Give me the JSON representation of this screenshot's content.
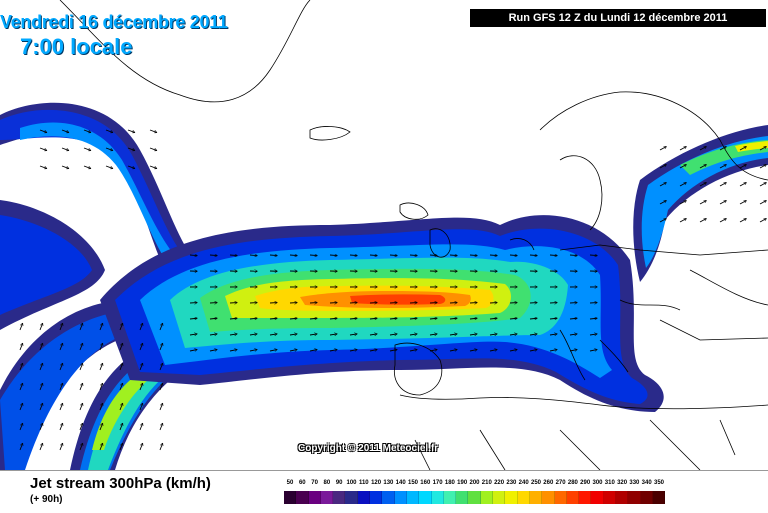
{
  "header": {
    "date": "Vendredi 16 décembre 2011",
    "time": "7:00 locale",
    "run": "Run GFS 12 Z du Lundi 12 décembre 2011"
  },
  "map": {
    "copyright": "Copyright © 2011 Meteociel.fr",
    "icon": "wind-arrow-icon"
  },
  "footer": {
    "title": "Jet stream 300hPa (km/h)",
    "subtitle": "(+ 90h)"
  },
  "legend": {
    "labels": [
      "50",
      "60",
      "70",
      "80",
      "90",
      "100",
      "110",
      "120",
      "130",
      "140",
      "150",
      "160",
      "170",
      "180",
      "190",
      "200",
      "210",
      "220",
      "230",
      "240",
      "250",
      "260",
      "270",
      "280",
      "290",
      "300",
      "310",
      "320",
      "330",
      "340",
      "350"
    ],
    "colors": [
      "#2a0030",
      "#4a0050",
      "#6a0080",
      "#7a1a9a",
      "#4a2880",
      "#2a2a8a",
      "#0a10c0",
      "#0030e0",
      "#0060f0",
      "#0090ff",
      "#00b8ff",
      "#00d8ff",
      "#20e8e0",
      "#40f0b0",
      "#40e070",
      "#60e040",
      "#a0f020",
      "#d0f010",
      "#f0f000",
      "#ffd800",
      "#ffb000",
      "#ff9000",
      "#ff6800",
      "#ff4000",
      "#ff1800",
      "#f00000",
      "#d00000",
      "#b00000",
      "#900000",
      "#700000",
      "#4a0000"
    ]
  }
}
